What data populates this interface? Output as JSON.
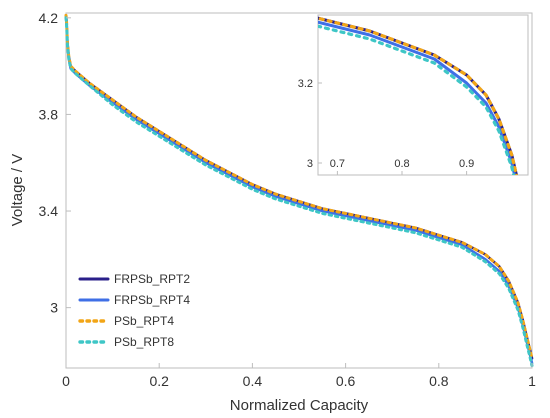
{
  "chart_data": {
    "type": "line",
    "xlabel": "Normalized Capacity",
    "ylabel": "Voltage / V",
    "xlim": [
      0,
      1
    ],
    "ylim": [
      2.75,
      4.22
    ],
    "x_ticks": [
      "0",
      "0.2",
      "0.4",
      "0.6",
      "0.8",
      "1"
    ],
    "y_ticks": [
      "3",
      "3.4",
      "3.8",
      "4.2"
    ],
    "legend_position": "bottom-left",
    "series": [
      {
        "name": "FRPSb_RPT2",
        "color": "#2a1f8a",
        "style": "solid",
        "x": [
          0,
          0.001,
          0.003,
          0.006,
          0.01,
          0.02,
          0.05,
          0.1,
          0.15,
          0.2,
          0.25,
          0.3,
          0.35,
          0.4,
          0.45,
          0.5,
          0.55,
          0.6,
          0.65,
          0.7,
          0.75,
          0.8,
          0.85,
          0.9,
          0.93,
          0.95,
          0.97,
          0.98,
          0.99,
          0.995,
          1.0
        ],
        "y": [
          4.21,
          4.19,
          4.1,
          4.04,
          4.0,
          3.98,
          3.93,
          3.86,
          3.79,
          3.73,
          3.67,
          3.61,
          3.56,
          3.51,
          3.47,
          3.44,
          3.41,
          3.39,
          3.37,
          3.35,
          3.33,
          3.3,
          3.27,
          3.22,
          3.17,
          3.11,
          3.02,
          2.95,
          2.87,
          2.83,
          2.79
        ]
      },
      {
        "name": "FRPSb_RPT4",
        "color": "#3f6fe6",
        "style": "solid",
        "x": [
          0,
          0.001,
          0.003,
          0.006,
          0.01,
          0.02,
          0.05,
          0.1,
          0.15,
          0.2,
          0.25,
          0.3,
          0.35,
          0.4,
          0.45,
          0.5,
          0.55,
          0.6,
          0.65,
          0.7,
          0.75,
          0.8,
          0.85,
          0.9,
          0.93,
          0.95,
          0.97,
          0.98,
          0.99,
          0.995,
          1.0
        ],
        "y": [
          4.2,
          4.18,
          4.09,
          4.03,
          3.99,
          3.97,
          3.92,
          3.85,
          3.78,
          3.72,
          3.66,
          3.6,
          3.55,
          3.5,
          3.46,
          3.43,
          3.4,
          3.38,
          3.36,
          3.34,
          3.32,
          3.29,
          3.26,
          3.2,
          3.15,
          3.09,
          3.0,
          2.93,
          2.85,
          2.81,
          2.77
        ]
      },
      {
        "name": "PSb_RPT4",
        "color": "#f2a516",
        "style": "dotted",
        "x": [
          0,
          0.001,
          0.003,
          0.006,
          0.01,
          0.02,
          0.05,
          0.1,
          0.15,
          0.2,
          0.25,
          0.3,
          0.35,
          0.4,
          0.45,
          0.5,
          0.55,
          0.6,
          0.65,
          0.7,
          0.75,
          0.8,
          0.85,
          0.9,
          0.93,
          0.95,
          0.97,
          0.98,
          0.99,
          0.995,
          1.0
        ],
        "y": [
          4.21,
          4.19,
          4.1,
          4.04,
          4.0,
          3.98,
          3.93,
          3.86,
          3.79,
          3.73,
          3.67,
          3.61,
          3.56,
          3.51,
          3.47,
          3.44,
          3.41,
          3.39,
          3.37,
          3.35,
          3.33,
          3.3,
          3.27,
          3.22,
          3.17,
          3.11,
          3.02,
          2.95,
          2.87,
          2.83,
          2.79
        ]
      },
      {
        "name": "PSb_RPT8",
        "color": "#3ec6c6",
        "style": "dotted",
        "x": [
          0,
          0.001,
          0.003,
          0.006,
          0.01,
          0.02,
          0.05,
          0.1,
          0.15,
          0.2,
          0.25,
          0.3,
          0.35,
          0.4,
          0.45,
          0.5,
          0.55,
          0.6,
          0.65,
          0.7,
          0.75,
          0.8,
          0.85,
          0.9,
          0.93,
          0.95,
          0.97,
          0.98,
          0.99,
          0.995,
          1.0
        ],
        "y": [
          4.2,
          4.18,
          4.09,
          4.03,
          3.99,
          3.97,
          3.92,
          3.84,
          3.77,
          3.71,
          3.65,
          3.59,
          3.54,
          3.49,
          3.45,
          3.42,
          3.39,
          3.37,
          3.35,
          3.33,
          3.31,
          3.28,
          3.25,
          3.19,
          3.14,
          3.08,
          2.99,
          2.92,
          2.84,
          2.8,
          2.76
        ]
      }
    ],
    "inset": {
      "xlim": [
        0.67,
        0.995
      ],
      "ylim": [
        2.97,
        3.37
      ],
      "x_ticks": [
        "0.7",
        "0.8",
        "0.9"
      ],
      "y_ticks": [
        "3",
        "3.2"
      ]
    }
  }
}
